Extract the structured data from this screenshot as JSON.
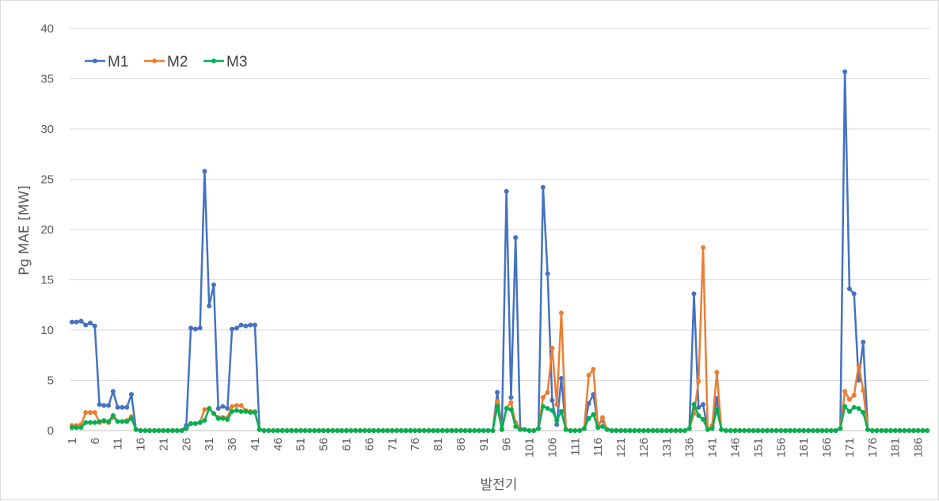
{
  "chart_data": {
    "type": "line",
    "title": "",
    "xlabel": "발전기",
    "ylabel": "Pg MAE [MW]",
    "ylim": [
      0,
      40
    ],
    "yticks": [
      0,
      5,
      10,
      15,
      20,
      25,
      30,
      35,
      40
    ],
    "x_range": [
      1,
      188
    ],
    "xticks": [
      1,
      6,
      11,
      16,
      21,
      26,
      31,
      36,
      41,
      46,
      51,
      56,
      61,
      66,
      71,
      76,
      81,
      86,
      91,
      96,
      101,
      106,
      111,
      116,
      121,
      126,
      131,
      136,
      141,
      146,
      151,
      156,
      161,
      166,
      171,
      176,
      181,
      186
    ],
    "grid": "horizontal",
    "legend_position": "top-left",
    "default_value": 0,
    "series": [
      {
        "name": "M1",
        "color": "#4472C4",
        "values": {
          "1": 10.8,
          "2": 10.8,
          "3": 10.9,
          "4": 10.5,
          "5": 10.7,
          "6": 10.4,
          "7": 2.6,
          "8": 2.5,
          "9": 2.5,
          "10": 3.9,
          "11": 2.3,
          "12": 2.3,
          "13": 2.3,
          "14": 3.6,
          "15": 0.1,
          "26": 0.5,
          "27": 10.2,
          "28": 10.1,
          "29": 10.2,
          "30": 25.8,
          "31": 12.4,
          "32": 14.5,
          "33": 2.2,
          "34": 2.4,
          "35": 2.2,
          "36": 10.1,
          "37": 10.2,
          "38": 10.5,
          "39": 10.4,
          "40": 10.5,
          "41": 10.5,
          "42": 0.1,
          "94": 3.8,
          "95": 0.1,
          "96": 23.8,
          "97": 3.3,
          "98": 19.2,
          "99": 0.2,
          "100": 0.1,
          "103": 0.2,
          "104": 24.2,
          "105": 15.6,
          "106": 3.0,
          "107": 0.6,
          "108": 5.2,
          "109": 0.1,
          "113": 0.2,
          "114": 2.7,
          "115": 3.6,
          "116": 0.6,
          "117": 1.0,
          "118": 0.1,
          "136": 0.2,
          "137": 13.6,
          "138": 2.3,
          "139": 2.6,
          "140": 0.1,
          "141": 0.3,
          "142": 3.2,
          "143": 0.1,
          "169": 0.2,
          "170": 35.7,
          "171": 14.1,
          "172": 13.6,
          "173": 5.0,
          "174": 8.8,
          "175": 0.1
        }
      },
      {
        "name": "M2",
        "color": "#ED7D31",
        "values": {
          "1": 0.5,
          "2": 0.5,
          "3": 0.6,
          "4": 1.8,
          "5": 1.8,
          "6": 1.8,
          "7": 0.8,
          "8": 0.9,
          "9": 0.8,
          "10": 1.3,
          "11": 0.9,
          "12": 0.9,
          "13": 1.0,
          "14": 1.4,
          "15": 0.1,
          "26": 0.2,
          "27": 0.7,
          "28": 0.7,
          "29": 0.8,
          "30": 2.1,
          "31": 2.2,
          "32": 1.7,
          "33": 1.3,
          "34": 1.3,
          "35": 1.3,
          "36": 2.4,
          "37": 2.5,
          "38": 2.5,
          "39": 2.0,
          "40": 1.9,
          "41": 1.9,
          "42": 0.1,
          "94": 2.9,
          "95": 0.2,
          "96": 2.2,
          "97": 2.8,
          "98": 0.8,
          "99": 0.2,
          "100": 0.1,
          "103": 0.2,
          "104": 3.3,
          "105": 3.8,
          "106": 8.2,
          "107": 2.6,
          "108": 11.7,
          "109": 0.1,
          "113": 0.2,
          "114": 5.5,
          "115": 6.1,
          "116": 0.3,
          "117": 1.3,
          "118": 0.1,
          "136": 0.2,
          "137": 1.7,
          "138": 4.9,
          "139": 18.2,
          "140": 0.1,
          "141": 0.5,
          "142": 5.8,
          "143": 0.1,
          "169": 0.2,
          "170": 3.9,
          "171": 3.1,
          "172": 3.5,
          "173": 6.5,
          "174": 4.0,
          "175": 0.1
        }
      },
      {
        "name": "M3",
        "color": "#00B050",
        "values": {
          "1": 0.3,
          "2": 0.3,
          "3": 0.3,
          "4": 0.8,
          "5": 0.8,
          "6": 0.8,
          "7": 0.9,
          "8": 1.0,
          "9": 0.9,
          "10": 1.5,
          "11": 0.9,
          "12": 0.9,
          "13": 0.9,
          "14": 1.2,
          "15": 0.1,
          "26": 0.2,
          "27": 0.7,
          "28": 0.7,
          "29": 0.8,
          "30": 1.0,
          "31": 2.2,
          "32": 1.7,
          "33": 1.2,
          "34": 1.2,
          "35": 1.1,
          "36": 1.9,
          "37": 2.0,
          "38": 1.9,
          "39": 1.9,
          "40": 1.8,
          "41": 1.8,
          "42": 0.1,
          "94": 2.4,
          "95": 0.1,
          "96": 2.2,
          "97": 2.1,
          "98": 0.4,
          "99": 0.1,
          "100": 0.1,
          "103": 0.2,
          "104": 2.4,
          "105": 2.2,
          "106": 2.0,
          "107": 1.0,
          "108": 1.9,
          "109": 0.1,
          "113": 0.2,
          "114": 1.2,
          "115": 1.6,
          "116": 0.3,
          "117": 0.4,
          "118": 0.1,
          "136": 0.2,
          "137": 2.6,
          "138": 1.5,
          "139": 1.1,
          "140": 0.1,
          "141": 0.2,
          "142": 2.1,
          "143": 0.1,
          "169": 0.2,
          "170": 2.4,
          "171": 1.9,
          "172": 2.3,
          "173": 2.2,
          "174": 1.8,
          "175": 0.1
        }
      }
    ]
  }
}
